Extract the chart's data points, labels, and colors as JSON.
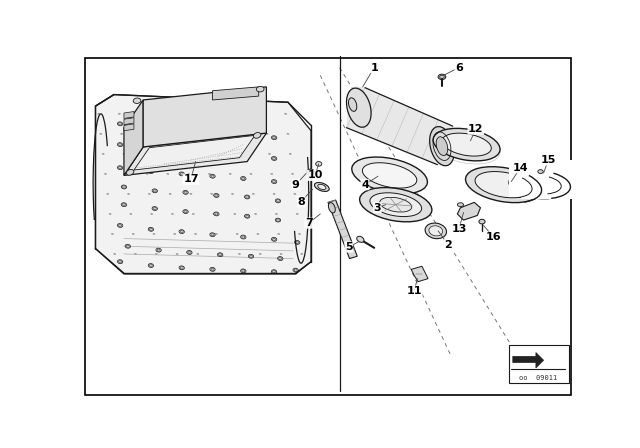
{
  "bg_color": "#ffffff",
  "border_color": "#000000",
  "line_color": "#1a1a1a",
  "fill_light": "#e8e8e8",
  "fill_mid": "#d0d0d0",
  "fill_dark": "#b0b0b0",
  "fill_white": "#f5f5f5",
  "label_fontsize": 8,
  "label_bold": true,
  "stamp_text": "oo  09011"
}
